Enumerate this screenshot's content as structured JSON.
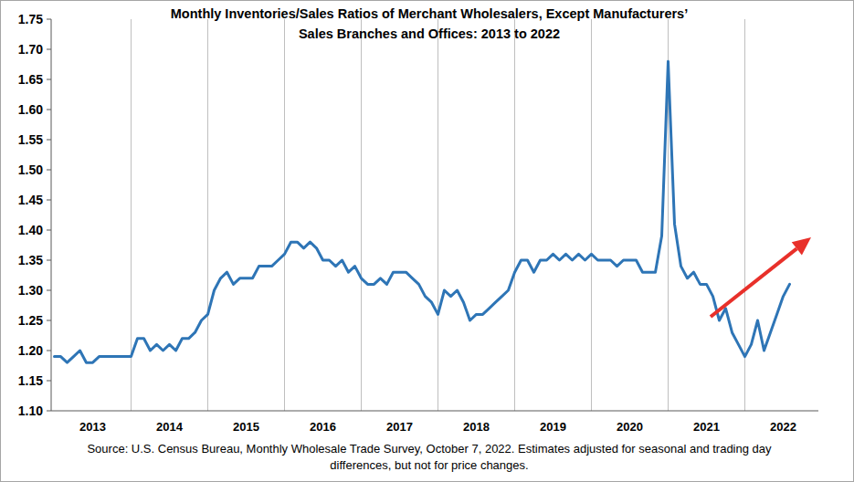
{
  "chart_data": {
    "type": "line",
    "title": [
      "Monthly Inventories/Sales Ratios of Merchant Wholesalers, Except Manufacturers’",
      "Sales Branches and Offices: 2013 to 2022"
    ],
    "source": [
      "Source: U.S. Census Bureau, Monthly Wholesale Trade Survey, October 7, 2022. Estimates adjusted for seasonal and trading day",
      "differences, but not for price changes."
    ],
    "color": "#2e75b6",
    "categories": [
      null,
      null,
      null,
      null,
      null,
      null,
      "2013",
      null,
      null,
      null,
      null,
      null,
      null,
      null,
      null,
      null,
      null,
      null,
      "2014",
      null,
      null,
      null,
      null,
      null,
      null,
      null,
      null,
      null,
      null,
      null,
      "2015",
      null,
      null,
      null,
      null,
      null,
      null,
      null,
      null,
      null,
      null,
      null,
      "2016",
      null,
      null,
      null,
      null,
      null,
      null,
      null,
      null,
      null,
      null,
      null,
      "2017",
      null,
      null,
      null,
      null,
      null,
      null,
      null,
      null,
      null,
      null,
      null,
      "2018",
      null,
      null,
      null,
      null,
      null,
      null,
      null,
      null,
      null,
      null,
      null,
      "2019",
      null,
      null,
      null,
      null,
      null,
      null,
      null,
      null,
      null,
      null,
      null,
      "2020",
      null,
      null,
      null,
      null,
      null,
      null,
      null,
      null,
      null,
      null,
      null,
      "2021",
      null,
      null,
      null,
      null,
      null,
      null,
      null,
      null,
      null,
      null,
      null,
      "2022",
      null,
      null,
      null,
      null,
      null
    ],
    "values": [
      1.19,
      1.19,
      1.18,
      1.19,
      1.2,
      1.18,
      1.18,
      1.19,
      1.19,
      1.19,
      1.19,
      1.19,
      1.19,
      1.22,
      1.22,
      1.2,
      1.21,
      1.2,
      1.21,
      1.2,
      1.22,
      1.22,
      1.23,
      1.25,
      1.26,
      1.3,
      1.32,
      1.33,
      1.31,
      1.32,
      1.32,
      1.32,
      1.34,
      1.34,
      1.34,
      1.35,
      1.36,
      1.38,
      1.38,
      1.37,
      1.38,
      1.37,
      1.35,
      1.35,
      1.34,
      1.35,
      1.33,
      1.34,
      1.32,
      1.31,
      1.31,
      1.32,
      1.31,
      1.33,
      1.33,
      1.33,
      1.32,
      1.31,
      1.29,
      1.28,
      1.26,
      1.3,
      1.29,
      1.3,
      1.28,
      1.25,
      1.26,
      1.26,
      1.27,
      1.28,
      1.29,
      1.3,
      1.33,
      1.35,
      1.35,
      1.33,
      1.35,
      1.35,
      1.36,
      1.35,
      1.36,
      1.35,
      1.36,
      1.35,
      1.36,
      1.35,
      1.35,
      1.35,
      1.34,
      1.35,
      1.35,
      1.35,
      1.33,
      1.33,
      1.33,
      1.39,
      1.68,
      1.41,
      1.34,
      1.32,
      1.33,
      1.31,
      1.31,
      1.29,
      1.25,
      1.27,
      1.23,
      1.21,
      1.19,
      1.21,
      1.25,
      1.2,
      1.23,
      1.26,
      1.29,
      1.31,
      null,
      null,
      null,
      null
    ],
    "ylim": [
      1.1,
      1.75
    ],
    "yticks": [
      {
        "value": 1.1,
        "label": "1.10"
      },
      1.15,
      {
        "value": 1.2,
        "label": "1.20"
      },
      1.25,
      {
        "value": 1.3,
        "label": "1.30"
      },
      1.35,
      {
        "value": 1.4,
        "label": "1.40"
      },
      1.45,
      {
        "value": 1.5,
        "label": "1.50"
      },
      1.55,
      {
        "value": 1.6,
        "label": "1.60"
      },
      1.65,
      {
        "value": 1.7,
        "label": "1.70"
      },
      1.75
    ]
  }
}
